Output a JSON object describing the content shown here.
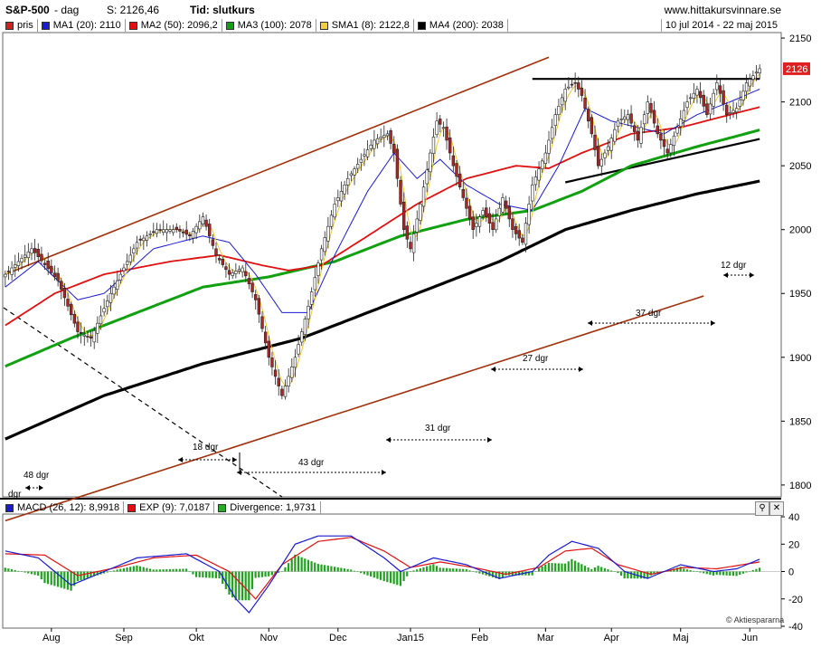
{
  "header": {
    "symbol": "S&P-500",
    "period": "- dag",
    "last": "S: 2126,46",
    "timeframe": "Tid: slutkurs",
    "site": "www.hittakursvinnare.se"
  },
  "legend": {
    "items": [
      {
        "label": "pris",
        "color": "#cc2222"
      },
      {
        "label": "MA1 (20): 2110",
        "color": "#1a1ad0"
      },
      {
        "label": "MA2 (50): 2096,2",
        "color": "#e01010"
      },
      {
        "label": "MA3 (100): 2078",
        "color": "#10a010"
      },
      {
        "label": "SMA1 (8): 2122,8",
        "color": "#f0d040"
      },
      {
        "label": "MA4 (200): 2038",
        "color": "#000000"
      }
    ],
    "date_range": "10 jul 2014 - 22 maj 2015"
  },
  "price_axis": {
    "ticks": [
      "2150",
      "2100",
      "2050",
      "2000",
      "1950",
      "1900",
      "1850",
      "1800"
    ],
    "current_value": "2126"
  },
  "annotations": {
    "durations": [
      "48 dgr",
      "18 dgr",
      "43 dgr",
      "31 dgr",
      "27 dgr",
      "37 dgr",
      "12 dgr"
    ],
    "axis_unit": "dgr"
  },
  "macd_legend": [
    {
      "label": "MACD (26, 12): 8,9918",
      "color": "#1a1ad0"
    },
    {
      "label": "EXP (9): 7,0187",
      "color": "#e01010"
    },
    {
      "label": "Divergence: 1,9731",
      "color": "#22b022"
    }
  ],
  "macd_axis": {
    "ticks": [
      "40",
      "20",
      "0",
      "-20",
      "-40"
    ]
  },
  "months": [
    "Aug",
    "Sep",
    "Okt",
    "Nov",
    "Dec",
    "Jan15",
    "Feb",
    "Mar",
    "Apr",
    "Maj",
    "Jun"
  ],
  "watermark": "Aktiespararna",
  "chart_data": {
    "type": "candlestick",
    "price_ylim": [
      1790,
      2155
    ],
    "macd_ylim": [
      -40,
      42
    ],
    "series": [
      {
        "name": "pris",
        "anchors": [
          [
            0,
            1965
          ],
          [
            8,
            1985
          ],
          [
            16,
            1960
          ],
          [
            22,
            1920
          ],
          [
            26,
            1915
          ],
          [
            32,
            1950
          ],
          [
            40,
            1990
          ],
          [
            46,
            2000
          ],
          [
            52,
            2000
          ],
          [
            56,
            1995
          ],
          [
            60,
            2010
          ],
          [
            64,
            1980
          ],
          [
            68,
            1965
          ],
          [
            72,
            1970
          ],
          [
            76,
            1945
          ],
          [
            80,
            1900
          ],
          [
            84,
            1870
          ],
          [
            88,
            1900
          ],
          [
            92,
            1940
          ],
          [
            96,
            1985
          ],
          [
            100,
            2020
          ],
          [
            104,
            2040
          ],
          [
            108,
            2055
          ],
          [
            112,
            2070
          ],
          [
            116,
            2075
          ],
          [
            118,
            2060
          ],
          [
            121,
            2000
          ],
          [
            123,
            1985
          ],
          [
            126,
            2020
          ],
          [
            129,
            2060
          ],
          [
            131,
            2085
          ],
          [
            133,
            2080
          ],
          [
            136,
            2050
          ],
          [
            139,
            2025
          ],
          [
            142,
            2000
          ],
          [
            145,
            2015
          ],
          [
            148,
            2000
          ],
          [
            151,
            2025
          ],
          [
            154,
            2000
          ],
          [
            157,
            1990
          ],
          [
            160,
            2035
          ],
          [
            164,
            2060
          ],
          [
            167,
            2090
          ],
          [
            170,
            2110
          ],
          [
            173,
            2115
          ],
          [
            175,
            2105
          ],
          [
            178,
            2075
          ],
          [
            180,
            2050
          ],
          [
            183,
            2065
          ],
          [
            186,
            2085
          ],
          [
            189,
            2090
          ],
          [
            192,
            2070
          ],
          [
            195,
            2100
          ],
          [
            198,
            2075
          ],
          [
            201,
            2060
          ],
          [
            204,
            2080
          ],
          [
            207,
            2100
          ],
          [
            210,
            2110
          ],
          [
            213,
            2090
          ],
          [
            216,
            2115
          ],
          [
            219,
            2090
          ],
          [
            222,
            2095
          ],
          [
            225,
            2115
          ],
          [
            229,
            2126
          ]
        ]
      },
      {
        "name": "MA1 (20)",
        "anchors": [
          [
            0,
            1955
          ],
          [
            10,
            1975
          ],
          [
            22,
            1945
          ],
          [
            30,
            1950
          ],
          [
            45,
            1985
          ],
          [
            60,
            1995
          ],
          [
            68,
            1990
          ],
          [
            76,
            1965
          ],
          [
            84,
            1935
          ],
          [
            92,
            1935
          ],
          [
            100,
            1980
          ],
          [
            110,
            2030
          ],
          [
            118,
            2060
          ],
          [
            125,
            2040
          ],
          [
            132,
            2055
          ],
          [
            140,
            2035
          ],
          [
            150,
            2020
          ],
          [
            160,
            2015
          ],
          [
            168,
            2050
          ],
          [
            176,
            2095
          ],
          [
            184,
            2085
          ],
          [
            192,
            2080
          ],
          [
            200,
            2075
          ],
          [
            210,
            2090
          ],
          [
            220,
            2100
          ],
          [
            229,
            2110
          ]
        ]
      },
      {
        "name": "MA2 (50)",
        "anchors": [
          [
            0,
            1925
          ],
          [
            15,
            1950
          ],
          [
            30,
            1965
          ],
          [
            50,
            1975
          ],
          [
            65,
            1980
          ],
          [
            78,
            1972
          ],
          [
            86,
            1968
          ],
          [
            96,
            1972
          ],
          [
            110,
            1995
          ],
          [
            125,
            2020
          ],
          [
            140,
            2040
          ],
          [
            155,
            2050
          ],
          [
            165,
            2048
          ],
          [
            175,
            2060
          ],
          [
            190,
            2075
          ],
          [
            205,
            2080
          ],
          [
            220,
            2090
          ],
          [
            229,
            2096
          ]
        ]
      },
      {
        "name": "MA3 (100)",
        "anchors": [
          [
            0,
            1893
          ],
          [
            20,
            1915
          ],
          [
            40,
            1935
          ],
          [
            60,
            1955
          ],
          [
            80,
            1963
          ],
          [
            100,
            1975
          ],
          [
            120,
            1995
          ],
          [
            140,
            2008
          ],
          [
            160,
            2015
          ],
          [
            175,
            2030
          ],
          [
            190,
            2050
          ],
          [
            210,
            2065
          ],
          [
            229,
            2078
          ]
        ]
      },
      {
        "name": "MA4 (200)",
        "anchors": [
          [
            0,
            1836
          ],
          [
            30,
            1870
          ],
          [
            60,
            1895
          ],
          [
            90,
            1915
          ],
          [
            120,
            1945
          ],
          [
            150,
            1975
          ],
          [
            170,
            2000
          ],
          [
            190,
            2015
          ],
          [
            210,
            2028
          ],
          [
            229,
            2038
          ]
        ]
      },
      {
        "name": "MACD (26, 12)",
        "anchors": [
          [
            0,
            15
          ],
          [
            10,
            10
          ],
          [
            20,
            -10
          ],
          [
            30,
            0
          ],
          [
            40,
            10
          ],
          [
            55,
            13
          ],
          [
            65,
            0
          ],
          [
            70,
            -20
          ],
          [
            74,
            -30
          ],
          [
            80,
            -10
          ],
          [
            88,
            20
          ],
          [
            95,
            26
          ],
          [
            105,
            26
          ],
          [
            115,
            10
          ],
          [
            120,
            0
          ],
          [
            130,
            10
          ],
          [
            140,
            5
          ],
          [
            150,
            -5
          ],
          [
            160,
            0
          ],
          [
            165,
            12
          ],
          [
            172,
            22
          ],
          [
            180,
            17
          ],
          [
            188,
            0
          ],
          [
            195,
            -5
          ],
          [
            205,
            5
          ],
          [
            215,
            0
          ],
          [
            222,
            2
          ],
          [
            229,
            8.99
          ]
        ]
      },
      {
        "name": "EXP (9)",
        "anchors": [
          [
            0,
            13
          ],
          [
            12,
            12
          ],
          [
            22,
            -3
          ],
          [
            34,
            3
          ],
          [
            45,
            10
          ],
          [
            58,
            12
          ],
          [
            68,
            0
          ],
          [
            76,
            -20
          ],
          [
            84,
            5
          ],
          [
            95,
            22
          ],
          [
            105,
            25
          ],
          [
            115,
            15
          ],
          [
            123,
            3
          ],
          [
            132,
            7
          ],
          [
            142,
            3
          ],
          [
            152,
            -2
          ],
          [
            162,
            3
          ],
          [
            170,
            15
          ],
          [
            178,
            17
          ],
          [
            186,
            5
          ],
          [
            196,
            -2
          ],
          [
            206,
            3
          ],
          [
            216,
            2
          ],
          [
            229,
            7.02
          ]
        ]
      }
    ],
    "trendlines": [
      {
        "from": [
          "index",
          0,
          1965
        ],
        "to": [
          "index",
          165,
          2135
        ],
        "color": "#a0300a"
      },
      {
        "from": [
          "index",
          0,
          1772
        ],
        "to": [
          "index",
          212,
          1948
        ],
        "color": "#a0300a"
      },
      {
        "from": [
          "index",
          160,
          2118
        ],
        "to": [
          "index",
          229,
          2118
        ],
        "color": "#000000"
      },
      {
        "from": [
          "index",
          170,
          2037
        ],
        "to": [
          "index",
          229,
          2071
        ],
        "color": "#000000"
      }
    ]
  }
}
